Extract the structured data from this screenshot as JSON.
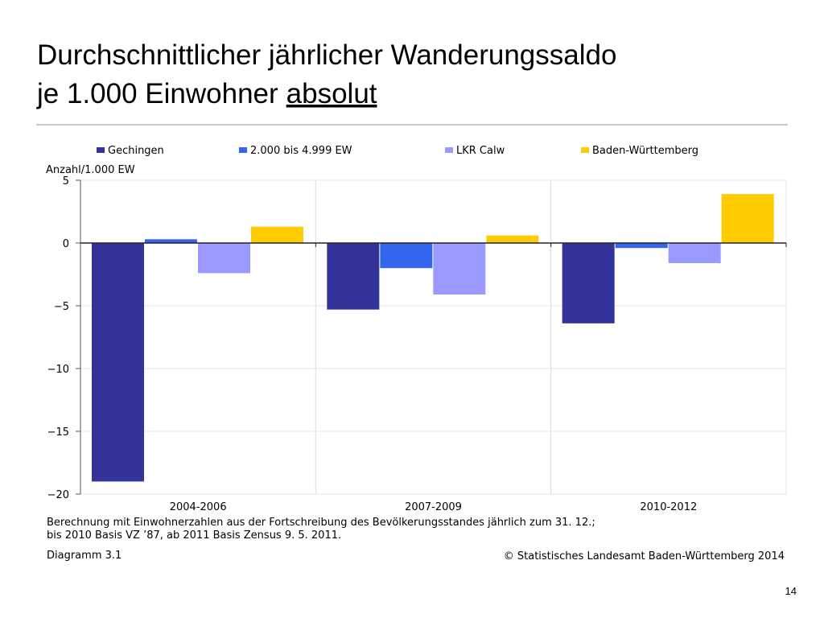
{
  "slide": {
    "title_line1": "Durchschnittlicher jährlicher Wanderungssaldo",
    "title_line2": "je 1.000 Einwohner",
    "title_emphasis": "absolut",
    "page_number": "14"
  },
  "chart_data": {
    "type": "bar",
    "y_axis_label": "Anzahl/1.000 EW",
    "categories": [
      "2004-2006",
      "2007-2009",
      "2010-2012"
    ],
    "series": [
      {
        "name": "Gechingen",
        "color": "#333399",
        "values": [
          -19.0,
          -5.3,
          -6.4
        ]
      },
      {
        "name": "2.000 bis 4.999 EW",
        "color": "#3366ee",
        "values": [
          0.3,
          -2.0,
          -0.4
        ]
      },
      {
        "name": "LKR Calw",
        "color": "#9999ff",
        "values": [
          -2.4,
          -4.1,
          -1.6
        ]
      },
      {
        "name": "Baden-Württemberg",
        "color": "#ffcc00",
        "values": [
          1.3,
          0.6,
          3.9
        ]
      }
    ],
    "ylim": [
      -20,
      5
    ],
    "yticks": [
      {
        "value": -20,
        "label": "−20"
      },
      {
        "value": -15,
        "label": "−15"
      },
      {
        "value": -10,
        "label": "−10"
      },
      {
        "value": -5,
        "label": "−5"
      },
      0,
      5
    ],
    "grid": true,
    "legend": "top",
    "notes": [
      "Berechnung mit Einwohnerzahlen aus der Fortschreibung des Bevölkerungsstandes jährlich zum 31. 12.;",
      "bis 2010 Basis VZ ’87, ab 2011 Basis Zensus 9. 5. 2011."
    ],
    "diagram_label": "Diagramm 3.1",
    "source": "© Statistisches Landesamt Baden-Württemberg 2014"
  }
}
